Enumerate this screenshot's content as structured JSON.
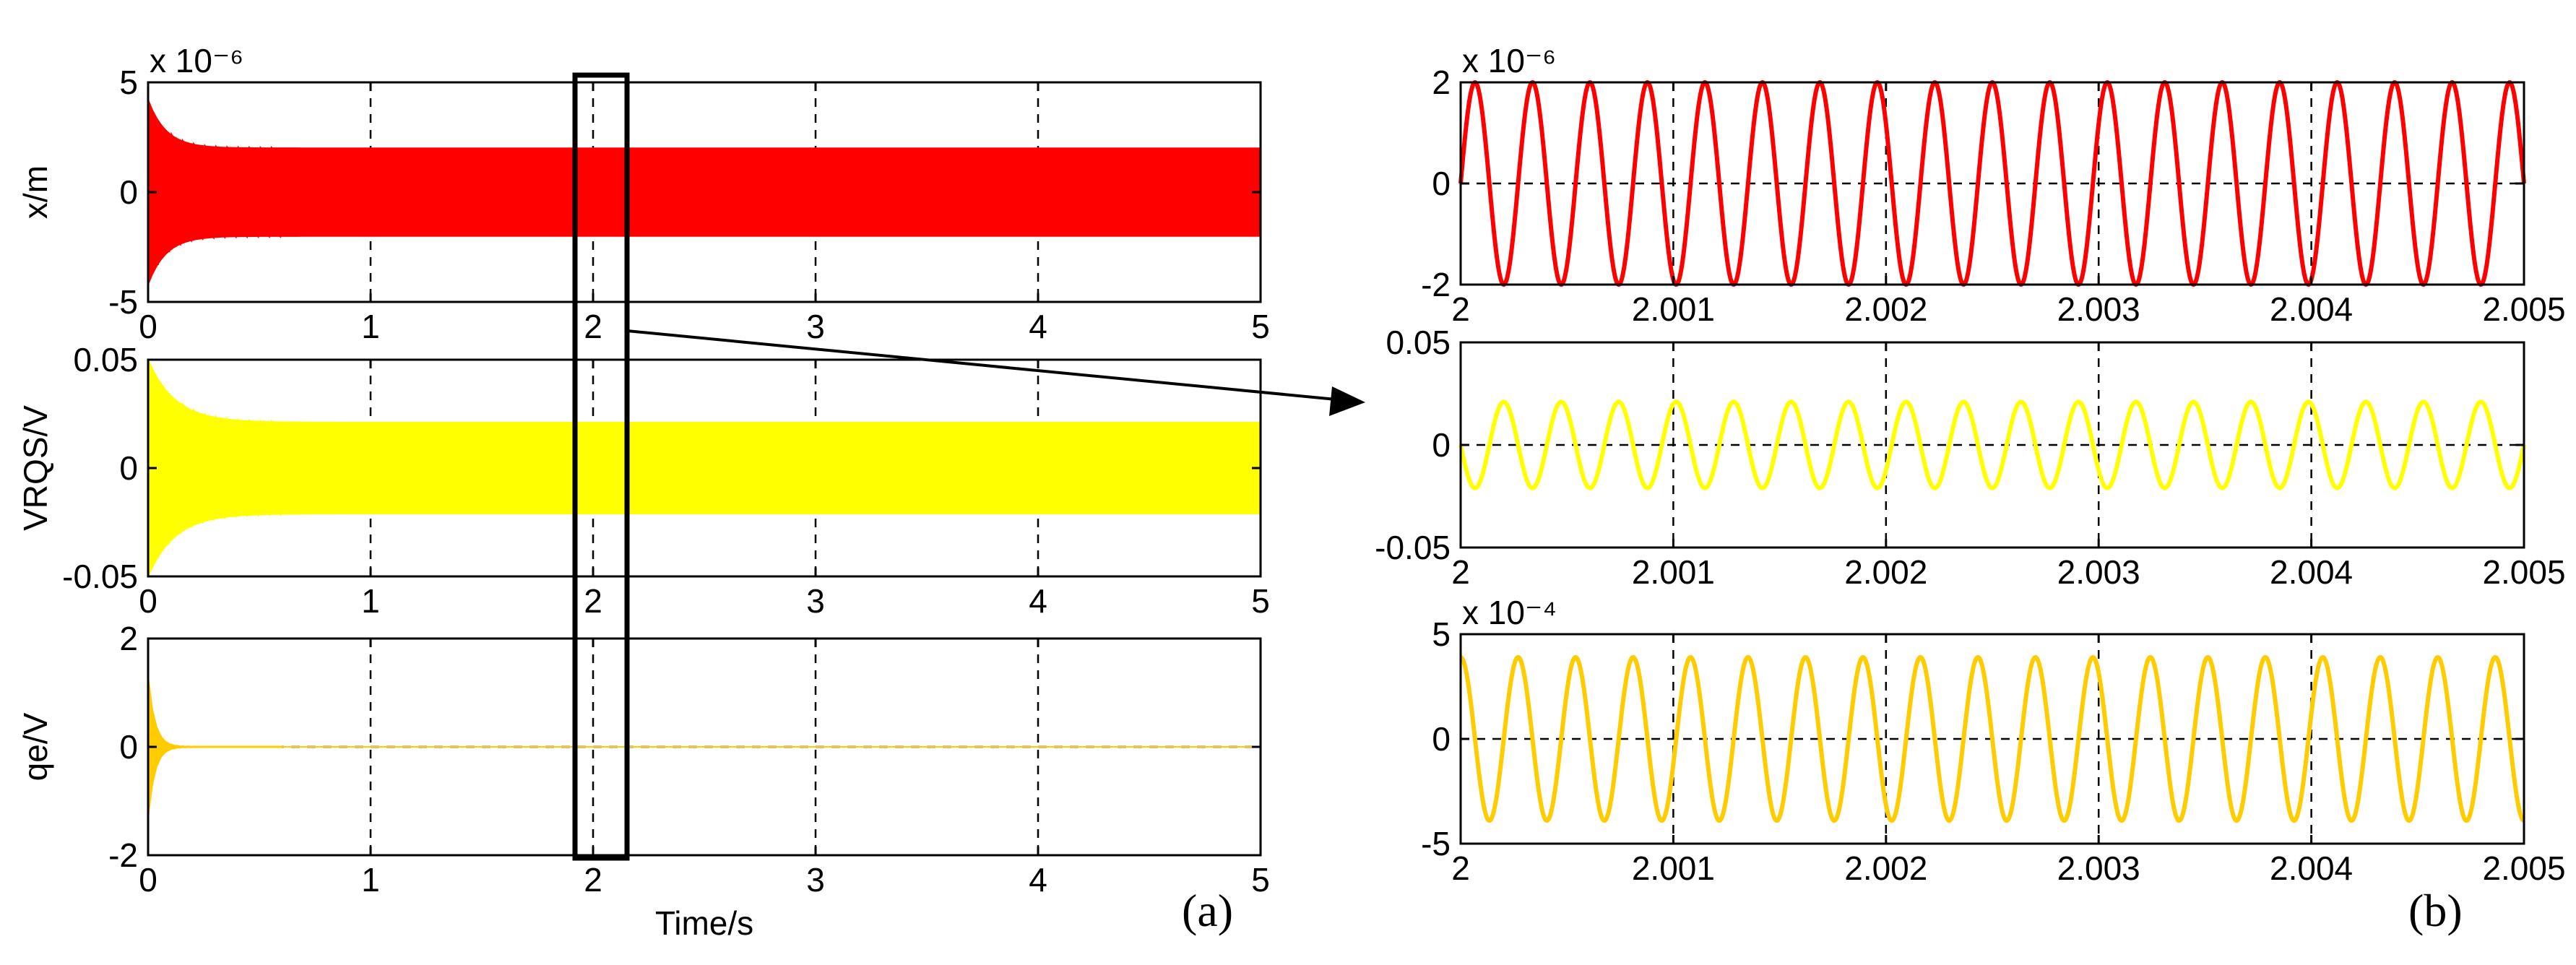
{
  "figure": {
    "panel_a_label": "(a)",
    "panel_b_label": "(b)"
  },
  "colors": {
    "red": "#ff0000",
    "yellow": "#ffff00",
    "gold": "#ffcc00",
    "grid": "#000000"
  },
  "chart_data": [
    {
      "id": "a1",
      "type": "line",
      "panel": "a",
      "ylabel": "x/m",
      "exponent": "x 10⁻⁶",
      "xlim": [
        0,
        5
      ],
      "ylim": [
        -5,
        5
      ],
      "xticks": [
        "0",
        "1",
        "2",
        "3",
        "4",
        "5"
      ],
      "yticks": [
        "-5",
        "0",
        "5"
      ],
      "ytick_values": [
        -5,
        0,
        5
      ],
      "grid": true,
      "series": [
        {
          "color": "#ff0000",
          "signal": "damped_band",
          "steady_amplitude": 2,
          "initial_amplitude": 4.2,
          "decay_time": 0.08
        }
      ]
    },
    {
      "id": "a2",
      "type": "line",
      "panel": "a",
      "ylabel": "VRQS/V",
      "xlim": [
        0,
        5
      ],
      "ylim": [
        -0.05,
        0.05
      ],
      "xticks": [
        "0",
        "1",
        "2",
        "3",
        "4",
        "5"
      ],
      "yticks": [
        "-0.05",
        "0",
        "0.05"
      ],
      "ytick_values": [
        -0.05,
        0,
        0.05
      ],
      "grid": true,
      "series": [
        {
          "color": "#ffff00",
          "signal": "damped_band",
          "steady_amplitude": 0.021,
          "initial_amplitude": 0.05,
          "decay_time": 0.12
        }
      ]
    },
    {
      "id": "a3",
      "type": "line",
      "panel": "a",
      "ylabel": "qe/V",
      "xlabel": "Time/s",
      "xlim": [
        0,
        5
      ],
      "ylim": [
        -2,
        2
      ],
      "xticks": [
        "0",
        "1",
        "2",
        "3",
        "4",
        "5"
      ],
      "yticks": [
        "-2",
        "0",
        "2"
      ],
      "ytick_values": [
        -2,
        0,
        2
      ],
      "grid": true,
      "series": [
        {
          "color": "#ffcc00",
          "signal": "damped_band",
          "steady_amplitude": 0.0004,
          "initial_amplitude": 1.3,
          "decay_time": 0.03
        }
      ]
    },
    {
      "id": "b1",
      "type": "line",
      "panel": "b",
      "exponent": "x 10⁻⁶",
      "xlim": [
        2,
        2.005
      ],
      "ylim": [
        -2,
        2
      ],
      "xticks": [
        "2",
        "2.001",
        "2.002",
        "2.003",
        "2.004",
        "2.005"
      ],
      "yticks": [
        "-2",
        "0",
        "2"
      ],
      "ytick_values": [
        -2,
        0,
        2
      ],
      "grid": true,
      "series": [
        {
          "color": "#ff0000",
          "signal": "sine",
          "amplitude": 2,
          "cycles": 18.5,
          "phase": 0
        }
      ]
    },
    {
      "id": "b2",
      "type": "line",
      "panel": "b",
      "xlim": [
        2,
        2.005
      ],
      "ylim": [
        -0.05,
        0.05
      ],
      "xticks": [
        "2",
        "2.001",
        "2.002",
        "2.003",
        "2.004",
        "2.005"
      ],
      "yticks": [
        "-0.05",
        "0",
        "0.05"
      ],
      "ytick_values": [
        -0.05,
        0,
        0.05
      ],
      "grid": true,
      "series": [
        {
          "color": "#ffff00",
          "signal": "sine",
          "amplitude": 0.021,
          "cycles": 18.5,
          "phase": 3.14159
        }
      ]
    },
    {
      "id": "b3",
      "type": "line",
      "panel": "b",
      "exponent": "x 10⁻⁴",
      "xlim": [
        2,
        2.005
      ],
      "ylim": [
        -5,
        5
      ],
      "xticks": [
        "2",
        "2.001",
        "2.002",
        "2.003",
        "2.004",
        "2.005"
      ],
      "yticks": [
        "-5",
        "0",
        "5"
      ],
      "ytick_values": [
        -5,
        0,
        5
      ],
      "grid": true,
      "series": [
        {
          "color": "#ffcc00",
          "signal": "sine",
          "amplitude": 3.9,
          "cycles": 18.5,
          "phase": 1.5708
        }
      ]
    }
  ]
}
